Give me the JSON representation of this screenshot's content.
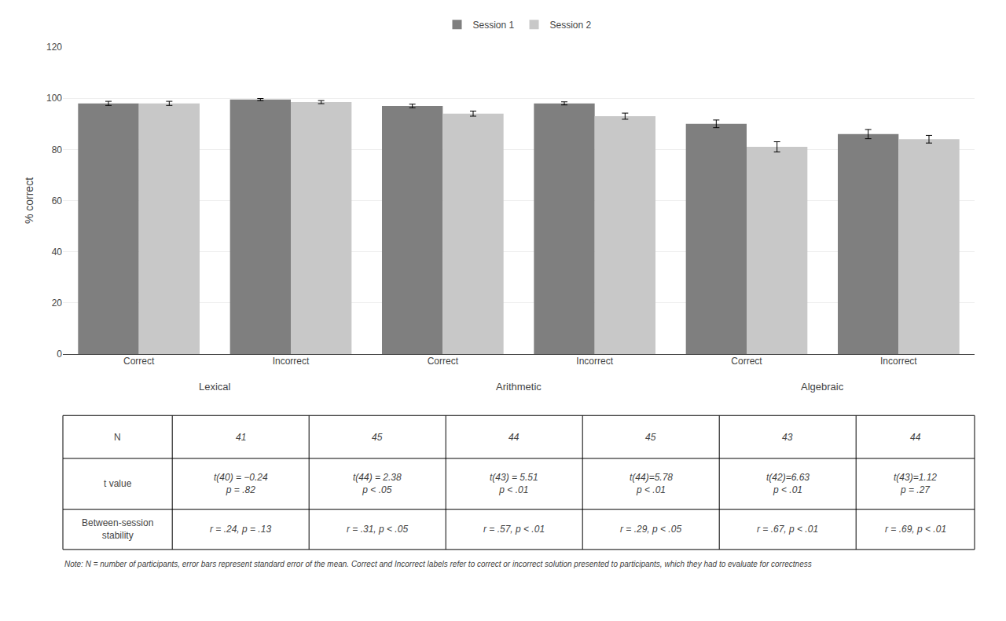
{
  "chart_data": {
    "type": "bar",
    "categories": [
      "Correct",
      "Incorrect",
      "Correct",
      "Incorrect",
      "Correct",
      "Incorrect"
    ],
    "group_labels": [
      "Lexical",
      "Arithmetic",
      "Algebraic"
    ],
    "series": [
      {
        "name": "Session 1",
        "color": "#7f7f7f",
        "values": [
          98,
          99.5,
          97,
          98,
          90,
          86
        ],
        "errors": [
          0.8,
          0.4,
          0.7,
          0.6,
          1.5,
          1.8
        ]
      },
      {
        "name": "Session 2",
        "color": "#c8c8c8",
        "values": [
          98,
          98.5,
          94,
          93,
          81,
          84
        ],
        "errors": [
          0.8,
          0.6,
          1.0,
          1.2,
          2.0,
          1.5
        ]
      }
    ],
    "ylabel": "% correct",
    "ylim": [
      0,
      120
    ],
    "yticks": [
      0,
      20,
      40,
      60,
      80,
      100,
      120
    ],
    "grid": true,
    "legend": "top",
    "table": {
      "rows": [
        {
          "label": [
            "N"
          ],
          "cells": [
            [
              "41"
            ],
            [
              "45"
            ],
            [
              "44"
            ],
            [
              "45"
            ],
            [
              "43"
            ],
            [
              "44"
            ]
          ]
        },
        {
          "label": [
            "t value"
          ],
          "cells": [
            [
              "t(40) = −0.24",
              "p = .82"
            ],
            [
              "t(44) = 2.38",
              "p < .05"
            ],
            [
              "t(43) = 5.51",
              "p < .01"
            ],
            [
              "t(44)=5.78",
              "p < .01"
            ],
            [
              "t(42)=6.63",
              "p < .01"
            ],
            [
              "t(43)=1.12",
              "p = .27"
            ]
          ]
        },
        {
          "label": [
            "Between-session",
            "stability"
          ],
          "cells": [
            [
              "r = .24, p = .13"
            ],
            [
              "r = .31, p < .05"
            ],
            [
              "r = .57, p < .01"
            ],
            [
              "r = .29, p < .05"
            ],
            [
              "r = .67, p < .01"
            ],
            [
              "r = .69, p < .01"
            ]
          ]
        }
      ]
    },
    "note": "Note: N = number of participants, error bars represent standard error of the mean. Correct and Incorrect labels refer to correct or incorrect solution presented to participants, which they had to evaluate for correctness"
  }
}
